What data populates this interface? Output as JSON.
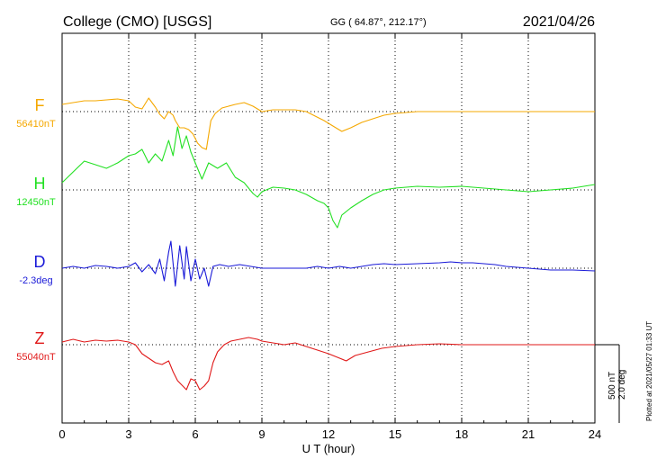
{
  "header": {
    "title": "College (CMO)  [USGS]",
    "coords": "GG ( 64.87°, 212.17°)",
    "date": "2021/04/26"
  },
  "footer": {
    "plotted": "Plotted at 2021/05/27 01:33 UT"
  },
  "scale": {
    "nt": "500 nT",
    "deg": "2.0 deg"
  },
  "colors": {
    "F": "#f5a800",
    "H": "#22e022",
    "D": "#1a1ad8",
    "Z": "#e01818"
  },
  "chart_data": {
    "type": "line",
    "xlabel": "U T (hour)",
    "xlim": [
      0,
      24
    ],
    "xticks": [
      "0",
      "3",
      "6",
      "9",
      "12",
      "15",
      "18",
      "21",
      "24"
    ],
    "grid": true,
    "series": [
      {
        "name": "F",
        "baseline_label": "56410nT",
        "points": [
          [
            0,
            -8
          ],
          [
            0.5,
            -10
          ],
          [
            1,
            -12
          ],
          [
            1.5,
            -12
          ],
          [
            2,
            -13
          ],
          [
            2.5,
            -14
          ],
          [
            3,
            -12
          ],
          [
            3.3,
            -5
          ],
          [
            3.6,
            -3
          ],
          [
            3.9,
            -15
          ],
          [
            4.2,
            -5
          ],
          [
            4.4,
            3
          ],
          [
            4.6,
            8
          ],
          [
            4.8,
            0
          ],
          [
            5,
            4
          ],
          [
            5.1,
            10
          ],
          [
            5.3,
            18
          ],
          [
            5.5,
            18
          ],
          [
            5.7,
            20
          ],
          [
            5.9,
            25
          ],
          [
            6.1,
            35
          ],
          [
            6.3,
            40
          ],
          [
            6.5,
            42
          ],
          [
            6.7,
            10
          ],
          [
            6.9,
            2
          ],
          [
            7.2,
            -4
          ],
          [
            7.5,
            -6
          ],
          [
            7.8,
            -8
          ],
          [
            8.2,
            -10
          ],
          [
            8.6,
            -6
          ],
          [
            9,
            0
          ],
          [
            9.5,
            -2
          ],
          [
            10,
            -2
          ],
          [
            10.5,
            -2
          ],
          [
            11,
            0
          ],
          [
            11.4,
            5
          ],
          [
            11.8,
            10
          ],
          [
            12.2,
            16
          ],
          [
            12.6,
            22
          ],
          [
            13,
            18
          ],
          [
            13.5,
            12
          ],
          [
            14,
            8
          ],
          [
            14.5,
            4
          ],
          [
            15,
            2
          ],
          [
            16,
            0
          ],
          [
            17,
            0
          ],
          [
            18,
            0
          ],
          [
            19,
            0
          ],
          [
            20,
            0
          ],
          [
            21,
            0
          ],
          [
            22,
            0
          ],
          [
            23,
            0
          ],
          [
            24,
            0
          ]
        ]
      },
      {
        "name": "H",
        "baseline_label": "12450nT",
        "points": [
          [
            0,
            -8
          ],
          [
            0.5,
            -20
          ],
          [
            1,
            -32
          ],
          [
            1.5,
            -28
          ],
          [
            2,
            -24
          ],
          [
            2.5,
            -30
          ],
          [
            3,
            -38
          ],
          [
            3.3,
            -40
          ],
          [
            3.6,
            -45
          ],
          [
            3.9,
            -30
          ],
          [
            4.2,
            -40
          ],
          [
            4.5,
            -32
          ],
          [
            4.8,
            -55
          ],
          [
            5,
            -38
          ],
          [
            5.2,
            -70
          ],
          [
            5.4,
            -46
          ],
          [
            5.6,
            -60
          ],
          [
            5.8,
            -42
          ],
          [
            6,
            -30
          ],
          [
            6.3,
            -12
          ],
          [
            6.6,
            -30
          ],
          [
            7,
            -24
          ],
          [
            7.4,
            -30
          ],
          [
            7.8,
            -14
          ],
          [
            8.2,
            -8
          ],
          [
            8.6,
            4
          ],
          [
            8.8,
            8
          ],
          [
            9,
            2
          ],
          [
            9.5,
            -3
          ],
          [
            10,
            -2
          ],
          [
            10.5,
            0
          ],
          [
            11,
            5
          ],
          [
            11.5,
            12
          ],
          [
            11.8,
            15
          ],
          [
            12,
            20
          ],
          [
            12.2,
            34
          ],
          [
            12.4,
            42
          ],
          [
            12.6,
            28
          ],
          [
            13,
            20
          ],
          [
            13.5,
            12
          ],
          [
            14,
            5
          ],
          [
            14.5,
            0
          ],
          [
            15,
            -2
          ],
          [
            16,
            -4
          ],
          [
            17,
            -3
          ],
          [
            18,
            -4
          ],
          [
            19,
            -2
          ],
          [
            20,
            0
          ],
          [
            21,
            2
          ],
          [
            22,
            0
          ],
          [
            23,
            -2
          ],
          [
            24,
            -6
          ]
        ]
      },
      {
        "name": "D",
        "baseline_label": "-2.3deg",
        "points": [
          [
            0,
            0
          ],
          [
            0.5,
            -2
          ],
          [
            1,
            0
          ],
          [
            1.5,
            -3
          ],
          [
            2,
            -2
          ],
          [
            2.5,
            0
          ],
          [
            3,
            -2
          ],
          [
            3.3,
            -6
          ],
          [
            3.6,
            4
          ],
          [
            3.9,
            -4
          ],
          [
            4.2,
            6
          ],
          [
            4.4,
            -10
          ],
          [
            4.6,
            14
          ],
          [
            4.8,
            -18
          ],
          [
            4.9,
            -30
          ],
          [
            5.1,
            20
          ],
          [
            5.3,
            -25
          ],
          [
            5.5,
            12
          ],
          [
            5.6,
            -24
          ],
          [
            5.8,
            14
          ],
          [
            6,
            -10
          ],
          [
            6.2,
            12
          ],
          [
            6.4,
            0
          ],
          [
            6.6,
            20
          ],
          [
            6.8,
            -2
          ],
          [
            7.1,
            -4
          ],
          [
            7.5,
            -2
          ],
          [
            8,
            -4
          ],
          [
            8.5,
            -2
          ],
          [
            9,
            0
          ],
          [
            9.5,
            0
          ],
          [
            10,
            0
          ],
          [
            10.5,
            0
          ],
          [
            11,
            0
          ],
          [
            11.5,
            -2
          ],
          [
            12,
            0
          ],
          [
            12.5,
            -2
          ],
          [
            13,
            0
          ],
          [
            13.5,
            -2
          ],
          [
            14,
            -4
          ],
          [
            14.5,
            -5
          ],
          [
            15,
            -4
          ],
          [
            16,
            -5
          ],
          [
            17,
            -6
          ],
          [
            17.5,
            -7
          ],
          [
            18,
            -6
          ],
          [
            18.5,
            -6
          ],
          [
            19,
            -5
          ],
          [
            19.5,
            -4
          ],
          [
            20,
            -2
          ],
          [
            21,
            0
          ],
          [
            22,
            2
          ],
          [
            23,
            2
          ],
          [
            24,
            3
          ]
        ]
      },
      {
        "name": "Z",
        "baseline_label": "55040nT",
        "points": [
          [
            0,
            -3
          ],
          [
            0.5,
            -6
          ],
          [
            1,
            -3
          ],
          [
            1.5,
            -5
          ],
          [
            2,
            -4
          ],
          [
            2.5,
            -5
          ],
          [
            3,
            -3
          ],
          [
            3.3,
            0
          ],
          [
            3.6,
            10
          ],
          [
            3.9,
            15
          ],
          [
            4.2,
            20
          ],
          [
            4.5,
            22
          ],
          [
            4.8,
            18
          ],
          [
            5,
            30
          ],
          [
            5.2,
            40
          ],
          [
            5.4,
            45
          ],
          [
            5.6,
            50
          ],
          [
            5.8,
            38
          ],
          [
            6,
            40
          ],
          [
            6.2,
            50
          ],
          [
            6.4,
            46
          ],
          [
            6.6,
            40
          ],
          [
            6.8,
            20
          ],
          [
            7,
            8
          ],
          [
            7.3,
            0
          ],
          [
            7.6,
            -4
          ],
          [
            8,
            -6
          ],
          [
            8.4,
            -8
          ],
          [
            8.8,
            -6
          ],
          [
            9,
            -4
          ],
          [
            9.5,
            -2
          ],
          [
            10,
            0
          ],
          [
            10.5,
            -2
          ],
          [
            11,
            2
          ],
          [
            11.5,
            6
          ],
          [
            12,
            10
          ],
          [
            12.4,
            14
          ],
          [
            12.8,
            18
          ],
          [
            13.2,
            12
          ],
          [
            13.8,
            8
          ],
          [
            14.4,
            4
          ],
          [
            15,
            2
          ],
          [
            16,
            0
          ],
          [
            17,
            -1
          ],
          [
            18,
            0
          ],
          [
            19,
            0
          ],
          [
            20,
            0
          ],
          [
            21,
            0
          ],
          [
            22,
            0
          ],
          [
            23,
            0
          ],
          [
            24,
            0
          ]
        ]
      }
    ]
  }
}
